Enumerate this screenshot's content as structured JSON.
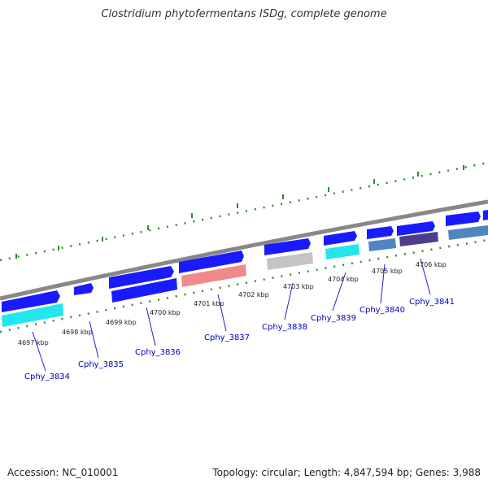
{
  "title": "Clostridium phytofermentans ISDg, complete genome",
  "footer": {
    "accession": "Accession: NC_010001",
    "topology": "Topology: circular; Length: 4,847,594 bp; Genes: 3,988"
  },
  "colors": {
    "forward_gene": "#1a1aff",
    "highlight_cyan": "#22e6f0",
    "pink": "#f08a8a",
    "gray": "#c4c4c4",
    "steel_blue": "#4f86c0",
    "dark_slate": "#4b3d8c",
    "backbone": "#888888",
    "ticks": "#2e8b2e",
    "label": "#0000c0"
  },
  "kbp_ticks": [
    "4697 kbp",
    "4698 kbp",
    "4699 kbp",
    "4700 kbp",
    "4701 kbp",
    "4702 kbp",
    "4703 kbp",
    "4704 kbp",
    "4705 kbp",
    "4706 kbp"
  ],
  "gene_labels": [
    "Cphy_3834",
    "Cphy_3835",
    "Cphy_3836",
    "Cphy_3837",
    "Cphy_3838",
    "Cphy_3839",
    "Cphy_3840",
    "Cphy_3841"
  ]
}
